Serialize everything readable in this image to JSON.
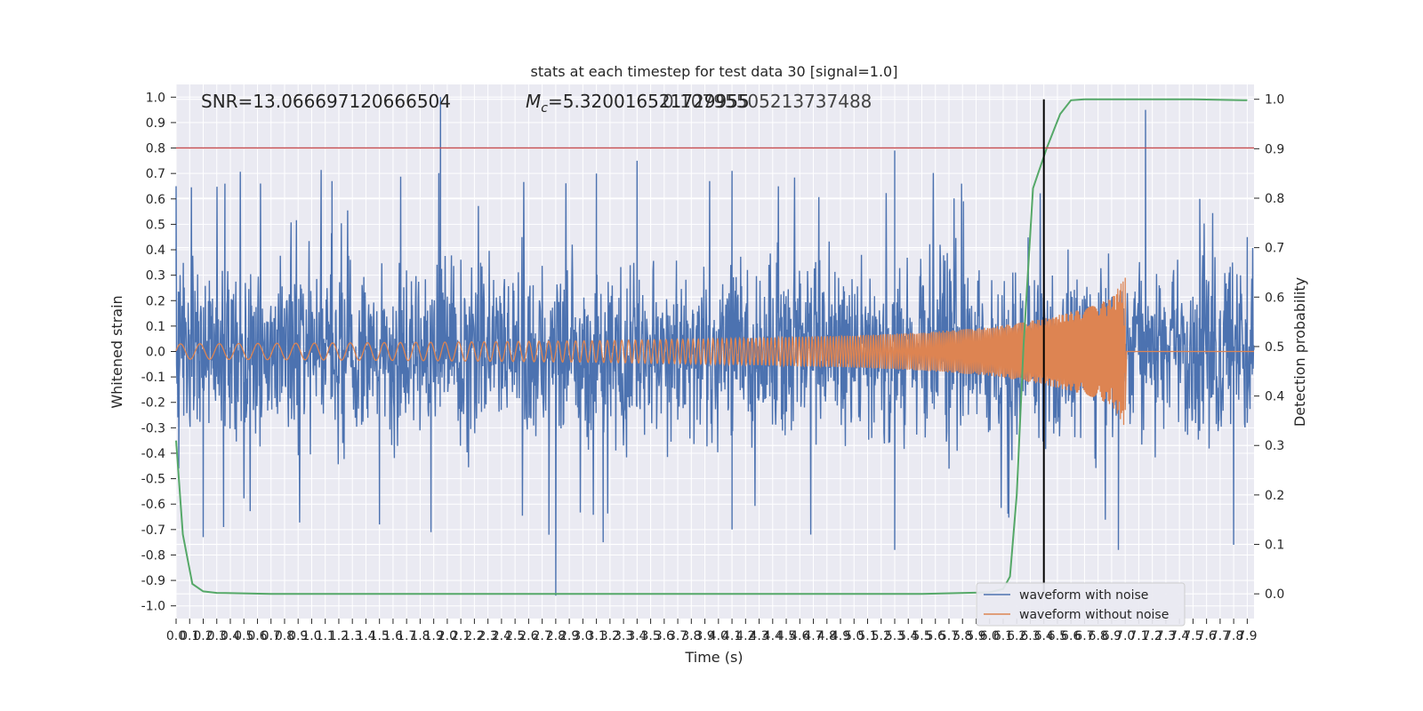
{
  "chart_data": {
    "type": "line",
    "title": "stats at each timestep for test data 30 [signal=1.0]",
    "xlabel": "Time (s)",
    "ylabel": "Whitened strain",
    "y2label": "Detection probability",
    "xlim": [
      0.0,
      7.95
    ],
    "ylim": [
      -1.05,
      1.05
    ],
    "y2lim": [
      -0.05,
      1.03
    ],
    "x_ticks": [
      "0.0",
      "0.1",
      "0.2",
      "0.3",
      "0.4",
      "0.5",
      "0.6",
      "0.7",
      "0.8",
      "0.9",
      "1.0",
      "1.1",
      "1.2",
      "1.3",
      "1.4",
      "1.5",
      "1.6",
      "1.7",
      "1.8",
      "1.9",
      "2.0",
      "2.1",
      "2.2",
      "2.3",
      "2.4",
      "2.5",
      "2.6",
      "2.7",
      "2.8",
      "2.9",
      "3.0",
      "3.1",
      "3.2",
      "3.3",
      "3.4",
      "3.5",
      "3.6",
      "3.7",
      "3.8",
      "3.9",
      "4.0",
      "4.1",
      "4.2",
      "4.3",
      "4.4",
      "4.5",
      "4.6",
      "4.7",
      "4.8",
      "4.9",
      "5.0",
      "5.1",
      "5.2",
      "5.3",
      "5.4",
      "5.5",
      "5.6",
      "5.7",
      "5.8",
      "5.9",
      "6.0",
      "6.1",
      "6.2",
      "6.3",
      "6.4",
      "6.5",
      "6.6",
      "6.7",
      "6.8",
      "6.9",
      "7.0",
      "7.1",
      "7.2",
      "7.3",
      "7.4",
      "7.5",
      "7.6",
      "7.7",
      "7.8",
      "7.9"
    ],
    "y_ticks": [
      "1.0",
      "0.9",
      "0.8",
      "0.7",
      "0.6",
      "0.5",
      "0.4",
      "0.3",
      "0.2",
      "0.1",
      "0.0",
      "-0.1",
      "-0.2",
      "-0.3",
      "-0.4",
      "-0.5",
      "-0.6",
      "-0.7",
      "-0.8",
      "-0.9",
      "-1.0"
    ],
    "y2_ticks": [
      "1.0",
      "0.9",
      "0.8",
      "0.7",
      "0.6",
      "0.5",
      "0.4",
      "0.3",
      "0.2",
      "0.1",
      "0.0"
    ],
    "grid": true,
    "legend_position": "lower-right",
    "annotations": {
      "snr": "SNR=13.066697120666504",
      "mc": "=5.320016521729955",
      "mc_symbol": "M",
      "mc_sub": "c",
      "overlap": "0.10795505213737488"
    },
    "threshold_y": 0.8,
    "marker_x": 6.4,
    "series": [
      {
        "name": "waveform with noise",
        "color": "#4c72b0",
        "description_points": [
          [
            0.0,
            0.65
          ],
          [
            0.02,
            -0.46
          ],
          [
            0.2,
            -0.73
          ],
          [
            0.36,
            0.66
          ],
          [
            0.35,
            -0.69
          ],
          [
            1.15,
            0.67
          ],
          [
            1.5,
            -0.68
          ],
          [
            1.95,
            1.0
          ],
          [
            1.88,
            -0.71
          ],
          [
            2.75,
            -0.72
          ],
          [
            2.8,
            -0.96
          ],
          [
            3.1,
            0.7
          ],
          [
            3.15,
            -0.75
          ],
          [
            3.4,
            0.75
          ],
          [
            4.1,
            0.71
          ],
          [
            4.1,
            -0.7
          ],
          [
            5.3,
            0.79
          ],
          [
            5.3,
            -0.78
          ],
          [
            6.4,
            0.51
          ],
          [
            6.95,
            -0.78
          ],
          [
            7.15,
            0.95
          ],
          [
            7.55,
            0.6
          ],
          [
            7.8,
            -0.76
          ],
          [
            7.9,
            0.45
          ]
        ]
      },
      {
        "name": "waveform without noise",
        "color": "#dd8452",
        "points": [
          [
            0.0,
            0.03
          ],
          [
            1.0,
            0.033
          ],
          [
            2.0,
            0.037
          ],
          [
            3.0,
            0.042
          ],
          [
            4.0,
            0.05
          ],
          [
            5.0,
            0.063
          ],
          [
            5.5,
            0.075
          ],
          [
            6.0,
            0.095
          ],
          [
            6.4,
            0.13
          ],
          [
            6.7,
            0.17
          ],
          [
            6.9,
            0.21
          ],
          [
            6.99,
            0.29
          ],
          [
            7.0,
            -0.23
          ],
          [
            7.01,
            0.0
          ],
          [
            7.95,
            0.0
          ]
        ]
      },
      {
        "name": "detection probability",
        "color": "#55a868",
        "axis": "right",
        "points": [
          [
            0.0,
            0.31
          ],
          [
            0.05,
            0.12
          ],
          [
            0.12,
            0.02
          ],
          [
            0.2,
            0.005
          ],
          [
            0.3,
            0.002
          ],
          [
            0.7,
            0.0
          ],
          [
            2.0,
            0.0
          ],
          [
            4.0,
            0.0
          ],
          [
            5.5,
            0.0
          ],
          [
            6.0,
            0.003
          ],
          [
            6.1,
            0.01
          ],
          [
            6.15,
            0.035
          ],
          [
            6.2,
            0.2
          ],
          [
            6.25,
            0.5
          ],
          [
            6.32,
            0.82
          ],
          [
            6.42,
            0.9
          ],
          [
            6.52,
            0.97
          ],
          [
            6.6,
            0.998
          ],
          [
            6.7,
            1.0
          ],
          [
            7.5,
            1.0
          ],
          [
            7.9,
            0.998
          ]
        ]
      }
    ]
  }
}
